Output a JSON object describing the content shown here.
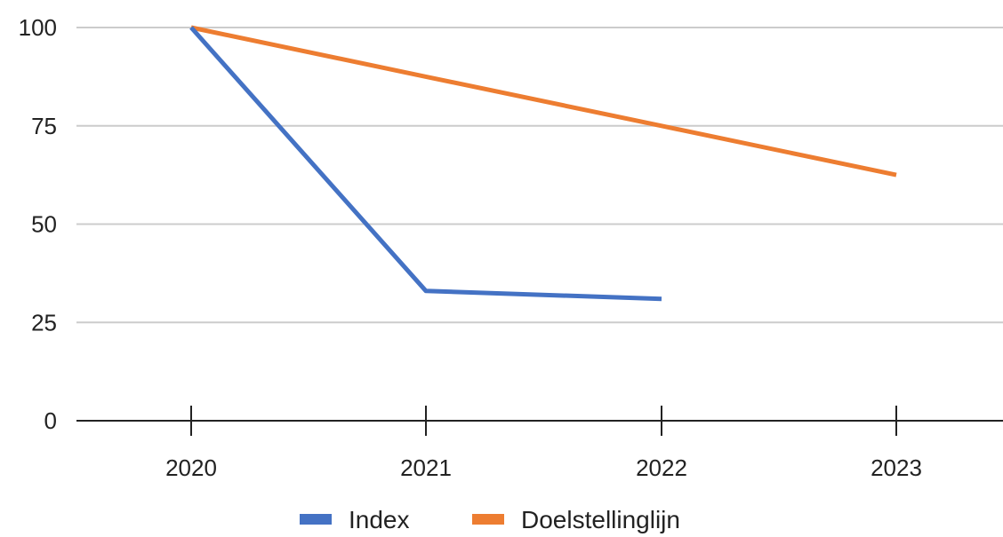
{
  "chart_data": {
    "type": "line",
    "title": "",
    "xlabel": "",
    "ylabel": "",
    "categories": [
      "2020",
      "2021",
      "2022",
      "2023"
    ],
    "ylim": [
      0,
      100
    ],
    "yticks": [
      "0",
      "25",
      "50",
      "75",
      "100"
    ],
    "grid": true,
    "legend_position": "bottom",
    "series": [
      {
        "name": "Index",
        "color": "#4472C4",
        "values": [
          100,
          33,
          31,
          null
        ]
      },
      {
        "name": "Doelstellinglijn",
        "color": "#ED7D31",
        "values": [
          100,
          87.5,
          75,
          62.5
        ]
      }
    ]
  }
}
